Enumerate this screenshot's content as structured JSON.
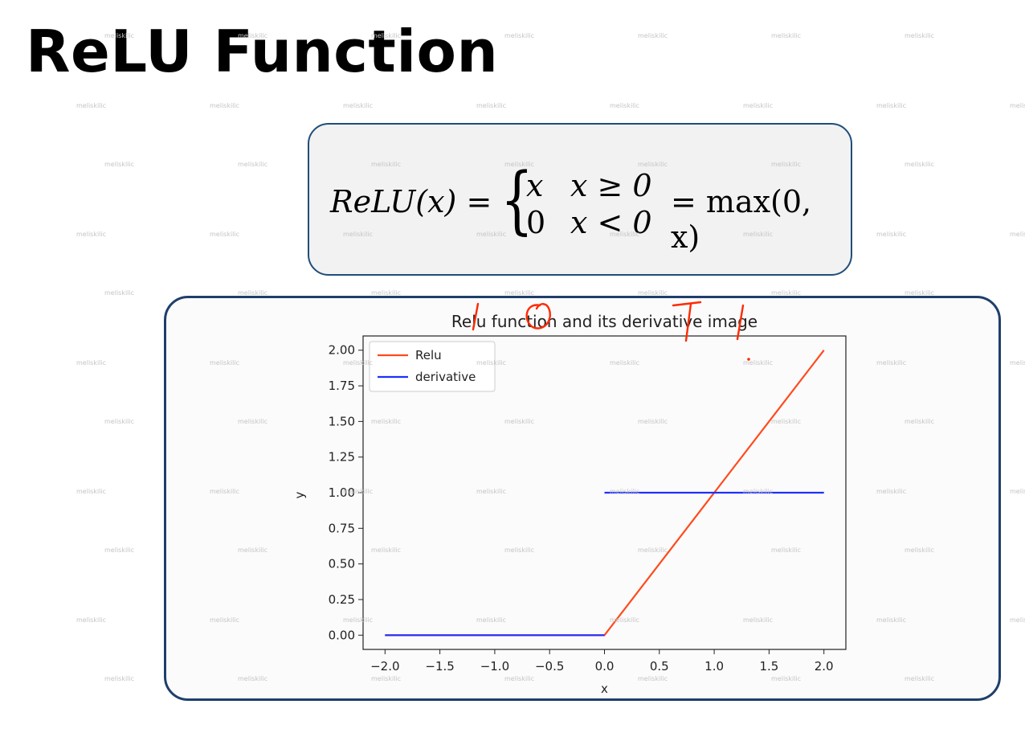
{
  "slide": {
    "title": "ReLU Function"
  },
  "formula": {
    "lhs": "ReLU(x) =",
    "case1_value": "x",
    "case1_cond": "x ≥ 0",
    "case2_value": "0",
    "case2_cond": "x < 0",
    "rhs": "= max(0, x)"
  },
  "watermark": "meliskilic",
  "chart_data": {
    "type": "line",
    "title": "Relu function and its derivative image",
    "xlabel": "x",
    "ylabel": "y",
    "xlim": [
      -2.2,
      2.2
    ],
    "ylim": [
      -0.1,
      2.1
    ],
    "xticks": [
      "−2.0",
      "−1.5",
      "−1.0",
      "−0.5",
      "0.0",
      "0.5",
      "1.0",
      "1.5",
      "2.0"
    ],
    "yticks": [
      "0.00",
      "0.25",
      "0.50",
      "0.75",
      "1.00",
      "1.25",
      "1.50",
      "1.75",
      "2.00"
    ],
    "legend_position": "top-left",
    "grid": false,
    "series": [
      {
        "name": "Relu",
        "color": "#ff4a1c",
        "segments": [
          [
            [
              -2.0,
              0.0
            ],
            [
              0.0,
              0.0
            ],
            [
              2.0,
              2.0
            ]
          ]
        ]
      },
      {
        "name": "derivative",
        "color": "#2030ff",
        "segments": [
          [
            [
              -2.0,
              0.0
            ],
            [
              0.0,
              0.0
            ]
          ],
          [
            [
              0.0,
              1.0
            ],
            [
              2.0,
              1.0
            ]
          ]
        ]
      }
    ],
    "annotation_color": "#ff2a00"
  }
}
